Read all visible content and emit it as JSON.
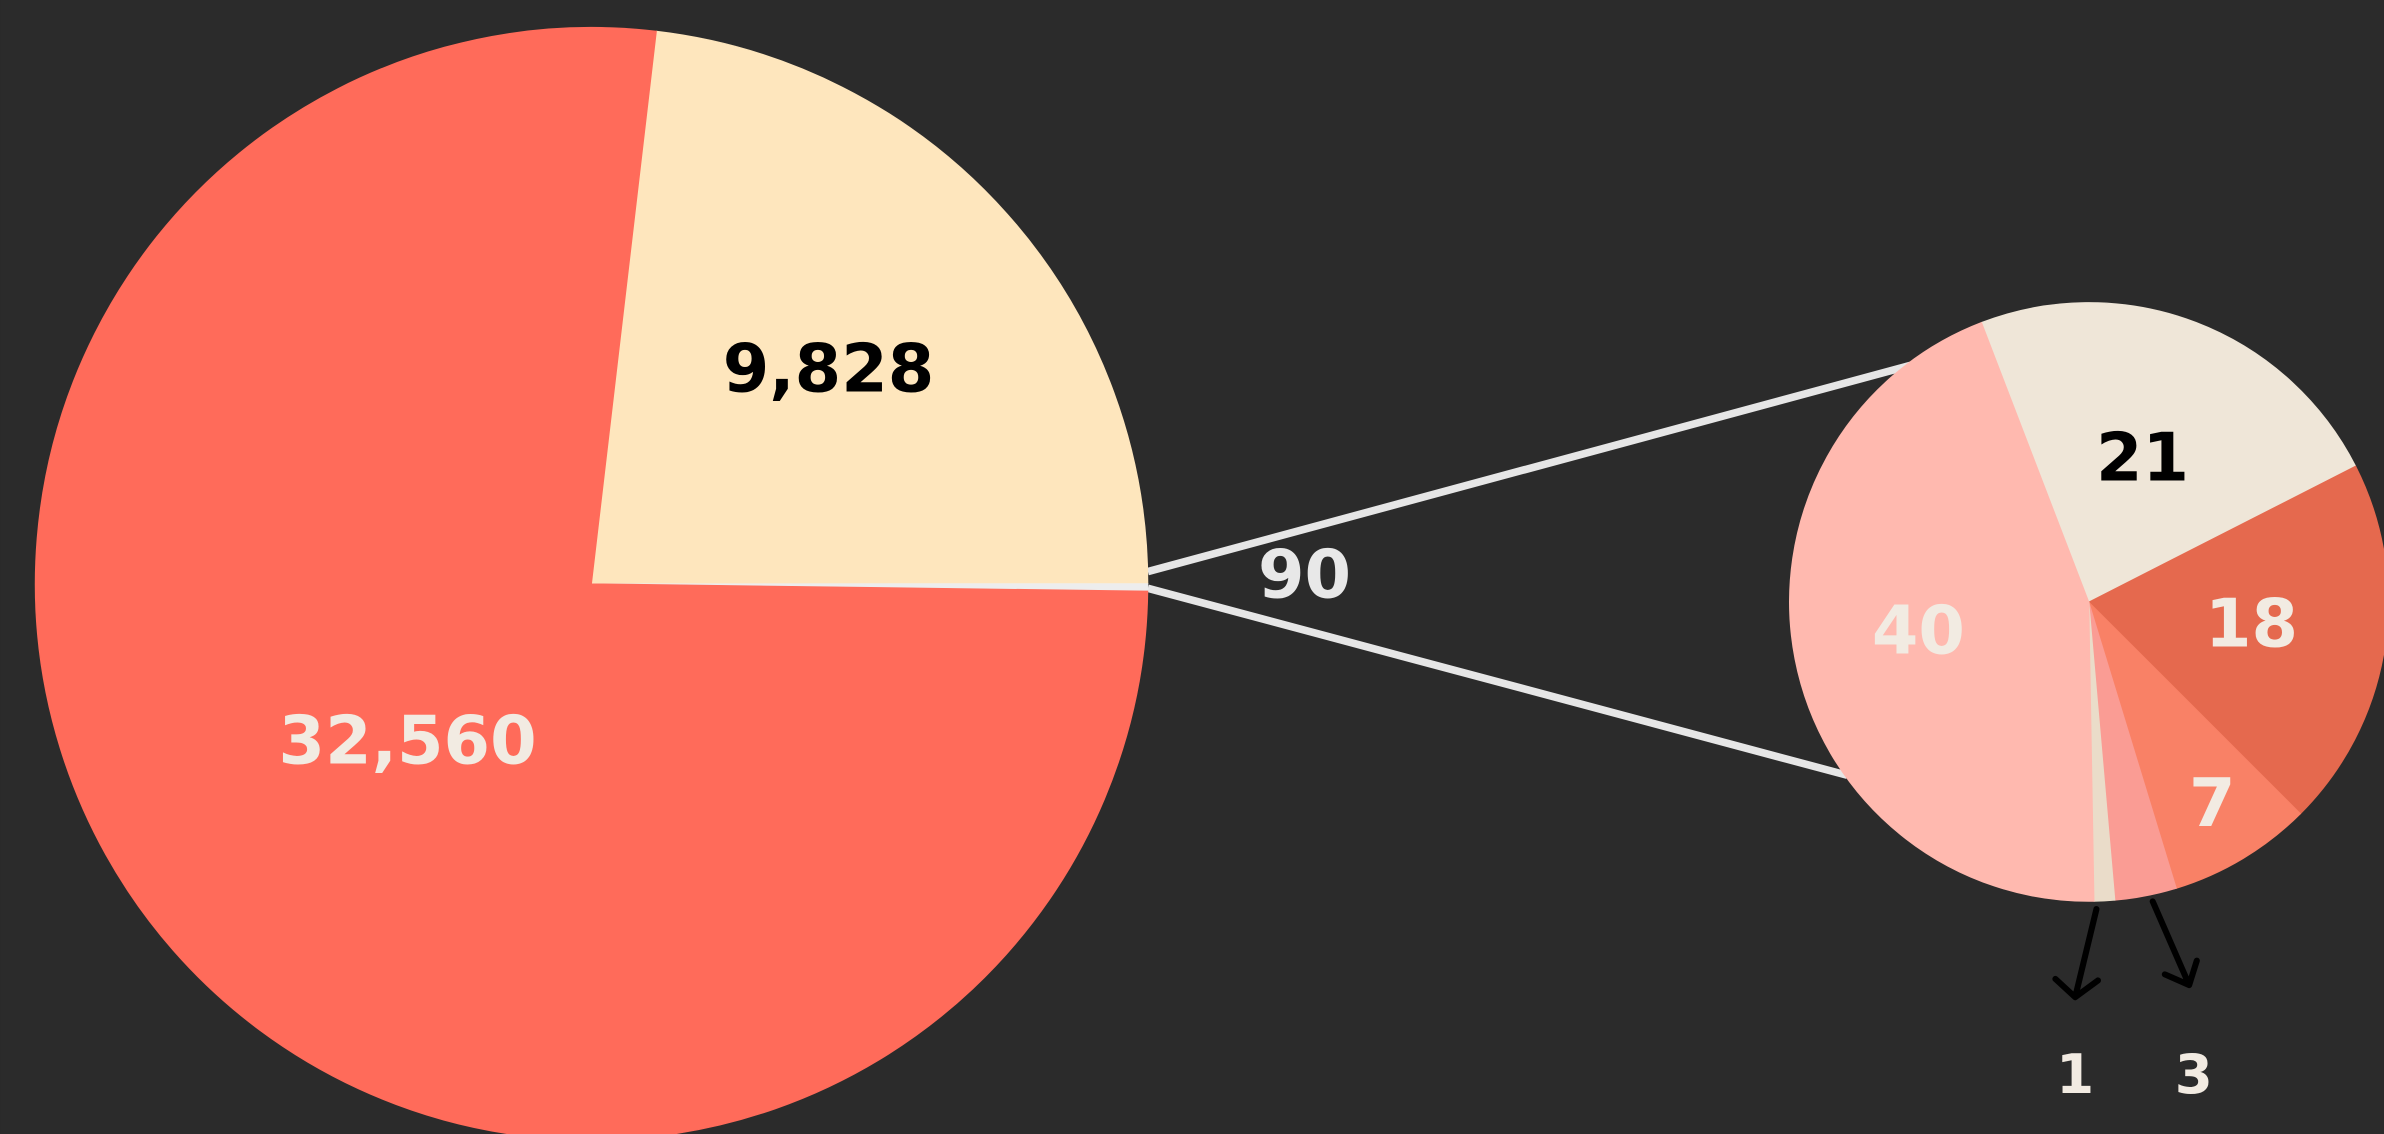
{
  "chart_data": [
    {
      "type": "pie",
      "values": [
        9828,
        90,
        32560
      ],
      "value_labels": [
        "9,828",
        "90",
        "32,560"
      ],
      "colors": [
        "#fee6bd",
        "#ededed",
        "#ff6b5a"
      ]
    },
    {
      "type": "pie",
      "values": [
        21,
        18,
        7,
        3,
        1,
        40
      ],
      "colors": [
        "#efe6d8",
        "#e5694e",
        "#f98166",
        "#fa9c94",
        "#eadcc9",
        "#ffb9af"
      ]
    }
  ]
}
